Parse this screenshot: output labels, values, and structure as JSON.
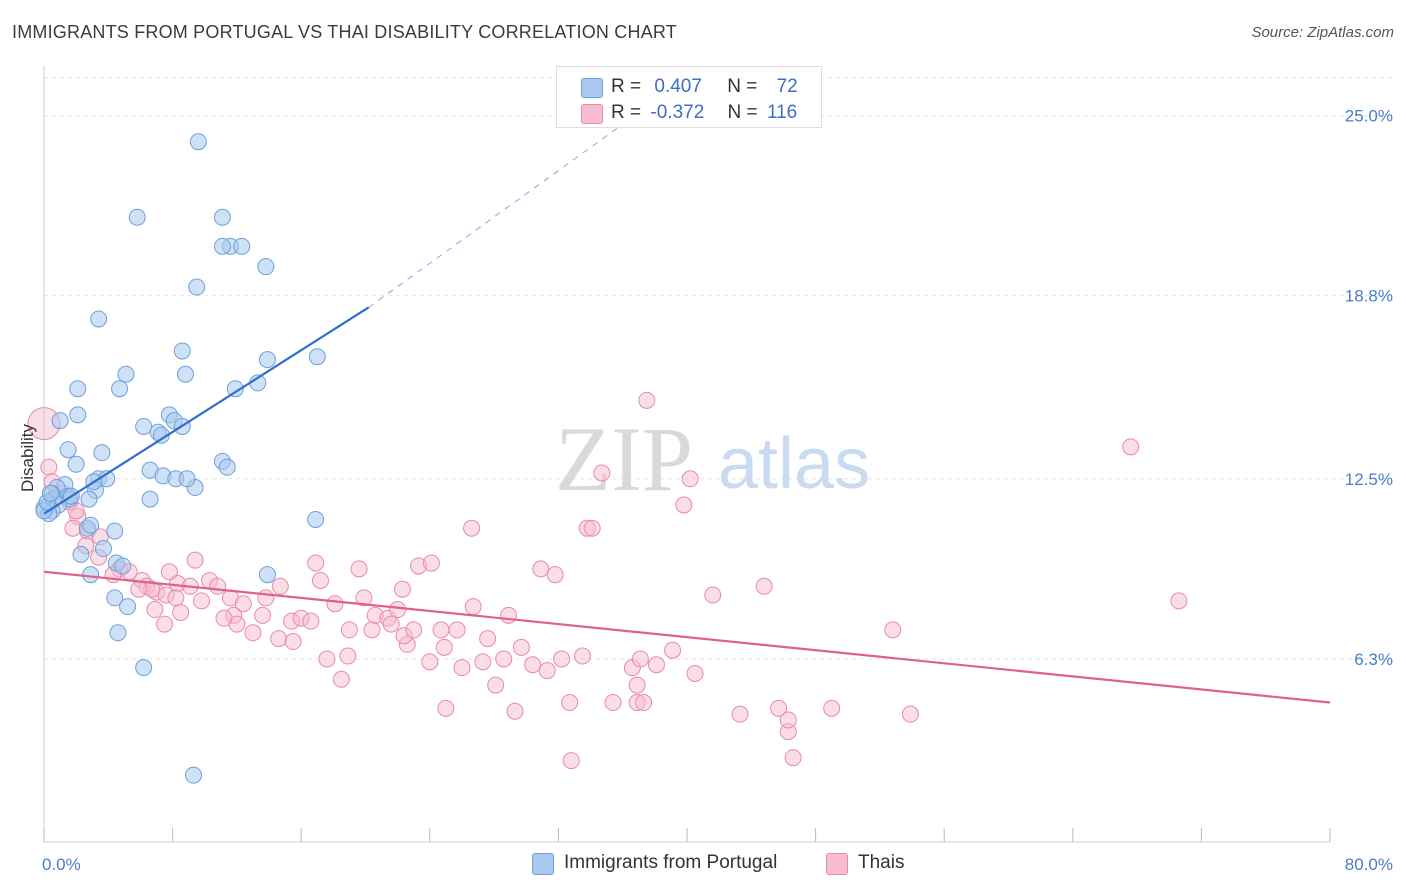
{
  "title": "IMMIGRANTS FROM PORTUGAL VS THAI DISABILITY CORRELATION CHART",
  "source": "Source: ZipAtlas.com",
  "watermark": {
    "zip": "ZIP",
    "atlas": "atlas"
  },
  "legend_top": {
    "rows": [
      {
        "r_label": "R =",
        "r_value": "0.407",
        "n_label": "N =",
        "n_value": "72"
      },
      {
        "r_label": "R =",
        "r_value": "-0.372",
        "n_label": "N =",
        "n_value": "116"
      }
    ]
  },
  "legend_bottom": [
    "Immigrants from Portugal",
    "Thais"
  ],
  "colors": {
    "blue_fill": "#a8c8f0",
    "blue_stroke": "#6f9fd8",
    "blue_line": "#2f6fce",
    "pink_fill": "#f7bcd0",
    "pink_stroke": "#e88aa8",
    "pink_line": "#e0608c",
    "tick_label": "#4a7cc9",
    "grid": "#e2e2e2"
  },
  "chart_data": {
    "type": "scatter",
    "title": "IMMIGRANTS FROM PORTUGAL VS THAI DISABILITY CORRELATION CHART",
    "xlabel": "",
    "ylabel": "Disability",
    "xlim": [
      0,
      80
    ],
    "ylim": [
      0,
      26.5
    ],
    "x_tick_labels": [
      "0.0%",
      "80.0%"
    ],
    "y_ticks": [
      6.3,
      12.5,
      18.8,
      25.0
    ],
    "y_tick_labels": [
      "6.3%",
      "12.5%",
      "18.8%",
      "25.0%"
    ],
    "grid": true,
    "legend_position": "top-center",
    "series": [
      {
        "name": "Immigrants from Portugal",
        "color": "#a8c8f0",
        "r": 0.407,
        "n": 72,
        "trend": {
          "x": [
            0,
            20.2
          ],
          "y": [
            11.3,
            18.4
          ],
          "dashed_to": [
            36,
            24.7
          ]
        },
        "points": [
          [
            9.6,
            24.1
          ],
          [
            5.8,
            21.5
          ],
          [
            11.1,
            21.5
          ],
          [
            11.6,
            20.5
          ],
          [
            11.1,
            20.5
          ],
          [
            12.3,
            20.5
          ],
          [
            13.8,
            19.8
          ],
          [
            9.5,
            19.1
          ],
          [
            3.4,
            18.0
          ],
          [
            8.6,
            16.9
          ],
          [
            13.9,
            16.6
          ],
          [
            17.0,
            16.7
          ],
          [
            5.1,
            16.1
          ],
          [
            8.8,
            16.1
          ],
          [
            13.3,
            15.8
          ],
          [
            2.1,
            15.6
          ],
          [
            4.7,
            15.6
          ],
          [
            11.9,
            15.6
          ],
          [
            2.1,
            14.7
          ],
          [
            1.0,
            14.5
          ],
          [
            6.2,
            14.3
          ],
          [
            7.8,
            14.7
          ],
          [
            8.1,
            14.5
          ],
          [
            7.1,
            14.1
          ],
          [
            7.3,
            14.0
          ],
          [
            8.6,
            14.3
          ],
          [
            1.5,
            13.5
          ],
          [
            3.6,
            13.4
          ],
          [
            2.0,
            13.0
          ],
          [
            11.1,
            13.1
          ],
          [
            11.4,
            12.9
          ],
          [
            6.6,
            12.8
          ],
          [
            7.4,
            12.6
          ],
          [
            8.2,
            12.5
          ],
          [
            3.4,
            12.5
          ],
          [
            3.9,
            12.5
          ],
          [
            1.3,
            12.3
          ],
          [
            0.8,
            12.2
          ],
          [
            3.2,
            12.1
          ],
          [
            9.4,
            12.2
          ],
          [
            0.5,
            12.0
          ],
          [
            1.5,
            11.9
          ],
          [
            0.6,
            11.8
          ],
          [
            2.8,
            11.8
          ],
          [
            1.6,
            11.8
          ],
          [
            0.3,
            11.6
          ],
          [
            0.9,
            11.6
          ],
          [
            6.6,
            11.8
          ],
          [
            0.0,
            11.5
          ],
          [
            0.5,
            11.4
          ],
          [
            0.3,
            11.3
          ],
          [
            16.9,
            11.1
          ],
          [
            2.7,
            10.8
          ],
          [
            2.9,
            10.9
          ],
          [
            4.4,
            10.7
          ],
          [
            3.7,
            10.1
          ],
          [
            2.3,
            9.9
          ],
          [
            4.5,
            9.6
          ],
          [
            4.9,
            9.5
          ],
          [
            2.9,
            9.2
          ],
          [
            13.9,
            9.2
          ],
          [
            4.4,
            8.4
          ],
          [
            5.2,
            8.1
          ],
          [
            4.6,
            7.2
          ],
          [
            6.2,
            6.0
          ],
          [
            9.3,
            2.3
          ],
          [
            0.0,
            11.4
          ],
          [
            0.2,
            11.7
          ],
          [
            1.7,
            11.9
          ],
          [
            3.1,
            12.4
          ],
          [
            0.4,
            12.0
          ],
          [
            8.9,
            12.5
          ]
        ]
      },
      {
        "name": "Thais",
        "color": "#f7bcd0",
        "r": -0.372,
        "n": 116,
        "trend": {
          "x": [
            0,
            80
          ],
          "y": [
            9.3,
            4.8
          ]
        },
        "points": [
          [
            0.0,
            14.4
          ],
          [
            0.3,
            12.9
          ],
          [
            0.5,
            12.4
          ],
          [
            1.2,
            12.0
          ],
          [
            1.6,
            11.7
          ],
          [
            2.1,
            11.2
          ],
          [
            2.0,
            11.4
          ],
          [
            1.8,
            10.8
          ],
          [
            2.7,
            10.7
          ],
          [
            3.5,
            10.5
          ],
          [
            2.6,
            10.2
          ],
          [
            3.4,
            9.8
          ],
          [
            4.7,
            9.4
          ],
          [
            4.3,
            9.2
          ],
          [
            5.3,
            9.3
          ],
          [
            6.1,
            9.0
          ],
          [
            6.4,
            8.8
          ],
          [
            7.0,
            8.6
          ],
          [
            7.6,
            8.5
          ],
          [
            8.3,
            8.9
          ],
          [
            7.8,
            9.3
          ],
          [
            9.4,
            9.7
          ],
          [
            9.1,
            8.8
          ],
          [
            8.2,
            8.4
          ],
          [
            6.7,
            8.7
          ],
          [
            5.9,
            8.7
          ],
          [
            6.9,
            8.0
          ],
          [
            7.5,
            7.5
          ],
          [
            8.5,
            7.9
          ],
          [
            10.3,
            9.0
          ],
          [
            10.8,
            8.8
          ],
          [
            9.8,
            8.3
          ],
          [
            11.6,
            8.4
          ],
          [
            12.4,
            8.2
          ],
          [
            11.8,
            7.8
          ],
          [
            12.0,
            7.5
          ],
          [
            11.2,
            7.7
          ],
          [
            13.8,
            8.4
          ],
          [
            13.6,
            7.8
          ],
          [
            14.7,
            8.8
          ],
          [
            13.0,
            7.2
          ],
          [
            14.6,
            7.0
          ],
          [
            15.5,
            6.9
          ],
          [
            15.4,
            7.6
          ],
          [
            16.0,
            7.7
          ],
          [
            16.6,
            7.6
          ],
          [
            16.9,
            9.6
          ],
          [
            17.2,
            9.0
          ],
          [
            18.1,
            8.2
          ],
          [
            17.6,
            6.3
          ],
          [
            18.5,
            5.6
          ],
          [
            18.9,
            6.4
          ],
          [
            19.0,
            7.3
          ],
          [
            19.6,
            9.4
          ],
          [
            19.9,
            8.4
          ],
          [
            20.4,
            7.3
          ],
          [
            20.6,
            7.8
          ],
          [
            21.4,
            7.7
          ],
          [
            21.6,
            7.5
          ],
          [
            22.0,
            8.0
          ],
          [
            22.3,
            8.7
          ],
          [
            22.6,
            6.8
          ],
          [
            22.4,
            7.1
          ],
          [
            23.0,
            7.3
          ],
          [
            23.3,
            9.5
          ],
          [
            24.1,
            9.6
          ],
          [
            24.0,
            6.2
          ],
          [
            24.7,
            7.3
          ],
          [
            24.9,
            6.7
          ],
          [
            25.7,
            7.3
          ],
          [
            25.0,
            4.6
          ],
          [
            26.0,
            6.0
          ],
          [
            26.6,
            10.8
          ],
          [
            26.7,
            8.1
          ],
          [
            27.3,
            6.2
          ],
          [
            27.6,
            7.0
          ],
          [
            28.1,
            5.4
          ],
          [
            28.6,
            6.3
          ],
          [
            28.9,
            7.8
          ],
          [
            29.3,
            4.5
          ],
          [
            29.7,
            6.7
          ],
          [
            30.4,
            6.1
          ],
          [
            30.9,
            9.4
          ],
          [
            31.3,
            5.9
          ],
          [
            31.8,
            9.2
          ],
          [
            32.2,
            6.3
          ],
          [
            32.7,
            4.8
          ],
          [
            32.8,
            2.8
          ],
          [
            33.5,
            6.4
          ],
          [
            33.8,
            10.8
          ],
          [
            34.1,
            10.8
          ],
          [
            34.7,
            12.7
          ],
          [
            35.4,
            4.8
          ],
          [
            36.6,
            6.0
          ],
          [
            36.9,
            5.4
          ],
          [
            37.1,
            6.3
          ],
          [
            36.9,
            4.8
          ],
          [
            37.5,
            15.2
          ],
          [
            37.3,
            4.8
          ],
          [
            38.1,
            6.1
          ],
          [
            39.1,
            6.6
          ],
          [
            39.8,
            11.6
          ],
          [
            40.2,
            12.5
          ],
          [
            40.5,
            5.8
          ],
          [
            41.6,
            8.5
          ],
          [
            43.3,
            4.4
          ],
          [
            44.8,
            8.8
          ],
          [
            45.7,
            4.6
          ],
          [
            46.3,
            3.8
          ],
          [
            46.3,
            4.2
          ],
          [
            46.6,
            2.9
          ],
          [
            49.0,
            4.6
          ],
          [
            52.8,
            7.3
          ],
          [
            53.9,
            4.4
          ],
          [
            67.6,
            13.6
          ],
          [
            70.6,
            8.3
          ]
        ]
      }
    ]
  }
}
